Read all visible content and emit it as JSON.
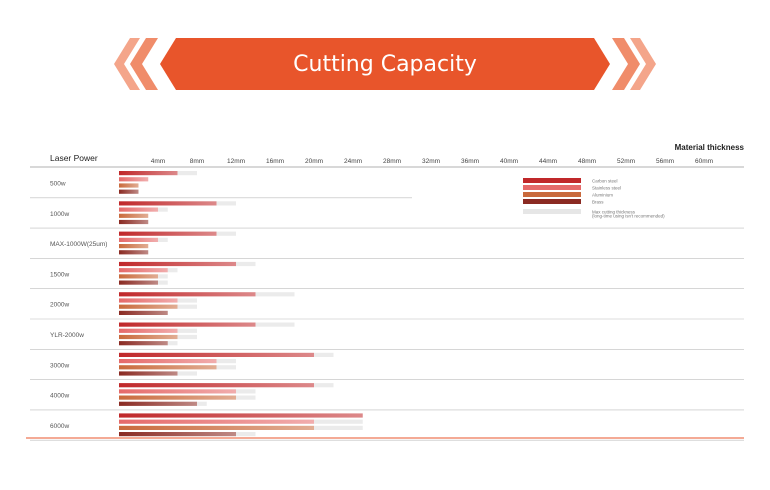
{
  "banner": {
    "title": "Cutting Capacity",
    "color": "#e8552b",
    "chevron_color": "#f4a58a"
  },
  "chart_data": {
    "type": "bar",
    "title": "Cutting Capacity",
    "xlabel": "Material thickness",
    "ylabel": "Laser Power",
    "xlim": [
      0,
      64
    ],
    "x_ticks": [
      "4mm",
      "8mm",
      "12mm",
      "16mm",
      "20mm",
      "24mm",
      "28mm",
      "32mm",
      "36mm",
      "40mm",
      "44mm",
      "48mm",
      "52mm",
      "56mm",
      "60mm"
    ],
    "x_tick_values": [
      4,
      8,
      12,
      16,
      20,
      24,
      28,
      32,
      36,
      40,
      44,
      48,
      52,
      56,
      60
    ],
    "legend": {
      "position": "top-right",
      "items": [
        {
          "label": "Carbon steel",
          "color": "#c0282a"
        },
        {
          "label": "Stainless steel",
          "color": "#e56a6a"
        },
        {
          "label": "Aluminium",
          "color": "#c96a3c"
        },
        {
          "label": "Brass",
          "color": "#8a2a22"
        },
        {
          "label": "Max cutting thickness",
          "color": "#e6e6e6"
        }
      ],
      "note": "(long-time using isn't recommended)"
    },
    "series_colors": {
      "Carbon steel": "#c0282a",
      "Stainless steel": "#e56a6a",
      "Aluminium": "#c96a3c",
      "Brass": "#8a2a22"
    },
    "categories": [
      "500w",
      "1000w",
      "MAX-1000W(25um)",
      "1500w",
      "2000w",
      "YLR-2000w",
      "3000w",
      "4000w",
      "6000w"
    ],
    "groups": [
      {
        "power": "500w",
        "bars": [
          {
            "material": "Carbon steel",
            "value": 6,
            "max": 8
          },
          {
            "material": "Stainless steel",
            "value": 3,
            "max": 3
          },
          {
            "material": "Aluminium",
            "value": 2,
            "max": 2
          },
          {
            "material": "Brass",
            "value": 2,
            "max": 2
          }
        ]
      },
      {
        "power": "1000w",
        "bars": [
          {
            "material": "Carbon steel",
            "value": 10,
            "max": 12
          },
          {
            "material": "Stainless steel",
            "value": 4,
            "max": 5
          },
          {
            "material": "Aluminium",
            "value": 3,
            "max": 3
          },
          {
            "material": "Brass",
            "value": 3,
            "max": 3
          }
        ]
      },
      {
        "power": "MAX-1000W(25um)",
        "bars": [
          {
            "material": "Carbon steel",
            "value": 10,
            "max": 12
          },
          {
            "material": "Stainless steel",
            "value": 4,
            "max": 5
          },
          {
            "material": "Aluminium",
            "value": 3,
            "max": 3
          },
          {
            "material": "Brass",
            "value": 3,
            "max": 3
          }
        ]
      },
      {
        "power": "1500w",
        "bars": [
          {
            "material": "Carbon steel",
            "value": 12,
            "max": 14
          },
          {
            "material": "Stainless steel",
            "value": 5,
            "max": 6
          },
          {
            "material": "Aluminium",
            "value": 4,
            "max": 5
          },
          {
            "material": "Brass",
            "value": 4,
            "max": 5
          }
        ]
      },
      {
        "power": "2000w",
        "bars": [
          {
            "material": "Carbon steel",
            "value": 14,
            "max": 18
          },
          {
            "material": "Stainless steel",
            "value": 6,
            "max": 8
          },
          {
            "material": "Aluminium",
            "value": 6,
            "max": 8
          },
          {
            "material": "Brass",
            "value": 5,
            "max": 5
          }
        ]
      },
      {
        "power": "YLR-2000w",
        "bars": [
          {
            "material": "Carbon steel",
            "value": 14,
            "max": 18
          },
          {
            "material": "Stainless steel",
            "value": 6,
            "max": 8
          },
          {
            "material": "Aluminium",
            "value": 6,
            "max": 8
          },
          {
            "material": "Brass",
            "value": 5,
            "max": 6
          }
        ]
      },
      {
        "power": "3000w",
        "bars": [
          {
            "material": "Carbon steel",
            "value": 20,
            "max": 22
          },
          {
            "material": "Stainless steel",
            "value": 10,
            "max": 12
          },
          {
            "material": "Aluminium",
            "value": 10,
            "max": 12
          },
          {
            "material": "Brass",
            "value": 6,
            "max": 8
          }
        ]
      },
      {
        "power": "4000w",
        "bars": [
          {
            "material": "Carbon steel",
            "value": 20,
            "max": 22
          },
          {
            "material": "Stainless steel",
            "value": 12,
            "max": 14
          },
          {
            "material": "Aluminium",
            "value": 12,
            "max": 14
          },
          {
            "material": "Brass",
            "value": 8,
            "max": 9
          }
        ]
      },
      {
        "power": "6000w",
        "bars": [
          {
            "material": "Carbon steel",
            "value": 25,
            "max": 25
          },
          {
            "material": "Stainless steel",
            "value": 20,
            "max": 25
          },
          {
            "material": "Aluminium",
            "value": 20,
            "max": 25
          },
          {
            "material": "Brass",
            "value": 12,
            "max": 14
          }
        ]
      }
    ]
  }
}
